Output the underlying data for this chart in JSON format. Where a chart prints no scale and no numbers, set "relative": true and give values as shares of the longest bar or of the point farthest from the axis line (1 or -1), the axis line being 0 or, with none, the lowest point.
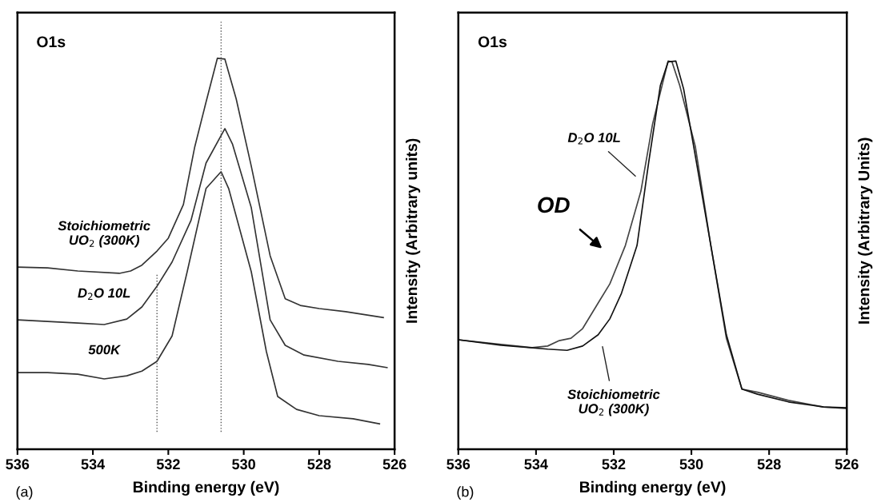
{
  "chart_data": [
    {
      "type": "line",
      "relative": true,
      "xlabel": "Binding energy (eV)",
      "ylabel": "Intensity (Arbitrary units)",
      "xlim": [
        536,
        526
      ],
      "xticks": [
        536,
        534,
        532,
        530,
        528,
        526
      ],
      "grid": false,
      "marker": "none",
      "line_style": "solid",
      "annotations": [
        "O1s",
        "(a)"
      ],
      "ref_lines": [
        {
          "axis": "x",
          "value": 532.3,
          "color": "#555555",
          "line_style": "dotted"
        },
        {
          "axis": "x",
          "value": 530.6,
          "color": "#555555",
          "line_style": "dotted"
        }
      ],
      "series": [
        {
          "name": "Stoichiometric\nUO$_{2}$ (300K)",
          "color": "#333333",
          "x": [
            536,
            535.2,
            534.4,
            533.3,
            533.0,
            532.7,
            532.3,
            532.0,
            531.6,
            531.3,
            531.0,
            530.7,
            530.5,
            530.2,
            529.8,
            529.3,
            528.9,
            528.5,
            528.0,
            527.3,
            526.3
          ],
          "values": [
            0.466,
            0.464,
            0.456,
            0.45,
            0.456,
            0.471,
            0.507,
            0.54,
            0.626,
            0.773,
            0.888,
            1.0,
            0.998,
            0.896,
            0.724,
            0.495,
            0.385,
            0.368,
            0.36,
            0.352,
            0.337
          ]
        },
        {
          "name": "D$_{2}$O 10L",
          "color": "#333333",
          "x": [
            536,
            535.2,
            534.4,
            533.7,
            533.1,
            532.7,
            532.3,
            531.9,
            531.4,
            531.0,
            530.5,
            530.3,
            529.8,
            529.3,
            528.9,
            528.4,
            527.5,
            526.7,
            526.2
          ],
          "values": [
            0.331,
            0.327,
            0.323,
            0.319,
            0.333,
            0.364,
            0.417,
            0.479,
            0.585,
            0.732,
            0.82,
            0.781,
            0.618,
            0.331,
            0.266,
            0.241,
            0.225,
            0.217,
            0.209
          ]
        },
        {
          "name": "500K",
          "color": "#333333",
          "x": [
            536,
            535.2,
            534.4,
            533.7,
            533.1,
            532.7,
            532.3,
            531.9,
            531.5,
            531.0,
            530.6,
            530.4,
            529.8,
            529.4,
            529.1,
            528.6,
            528.0,
            527.1,
            526.4
          ],
          "values": [
            0.196,
            0.196,
            0.192,
            0.18,
            0.188,
            0.2,
            0.225,
            0.29,
            0.454,
            0.667,
            0.71,
            0.667,
            0.454,
            0.25,
            0.135,
            0.102,
            0.086,
            0.078,
            0.065
          ]
        }
      ]
    },
    {
      "type": "line",
      "relative": true,
      "xlabel": "Binding energy (eV)",
      "ylabel": "Intensity (Arbitrary Units)",
      "xlim": [
        536,
        526
      ],
      "xticks": [
        536,
        534,
        532,
        530,
        528,
        526
      ],
      "grid": false,
      "marker": "none",
      "line_style": "solid",
      "annotations": [
        "O1s",
        "(b)",
        "OD"
      ],
      "series": [
        {
          "name": "D$_{2}$O 10L",
          "color": "#444444",
          "x": [
            536,
            534.9,
            534.1,
            533.7,
            533.4,
            533.1,
            532.8,
            532.4,
            532.1,
            531.7,
            531.3,
            531.0,
            530.6,
            530.5,
            530.3,
            529.9,
            529.5,
            529.1,
            528.7,
            528.3,
            527.5,
            526.6,
            526.0
          ],
          "values": [
            0.282,
            0.27,
            0.262,
            0.266,
            0.28,
            0.286,
            0.311,
            0.377,
            0.426,
            0.525,
            0.665,
            0.838,
            1.0,
            0.998,
            0.937,
            0.78,
            0.525,
            0.286,
            0.155,
            0.147,
            0.126,
            0.109,
            0.105
          ]
        },
        {
          "name": "Stoichiometric\nUO$_{2}$ (300K)",
          "color": "#111111",
          "x": [
            536,
            534.9,
            533.7,
            533.2,
            532.8,
            532.4,
            532.1,
            531.8,
            531.4,
            531.1,
            530.8,
            530.6,
            530.4,
            530.2,
            529.9,
            529.5,
            529.1,
            528.7,
            528.3,
            527.5,
            526.6,
            526.0
          ],
          "values": [
            0.282,
            0.268,
            0.258,
            0.255,
            0.266,
            0.295,
            0.336,
            0.402,
            0.525,
            0.739,
            0.937,
            0.998,
            1.0,
            0.928,
            0.756,
            0.525,
            0.295,
            0.155,
            0.142,
            0.122,
            0.109,
            0.107
          ]
        }
      ]
    }
  ]
}
